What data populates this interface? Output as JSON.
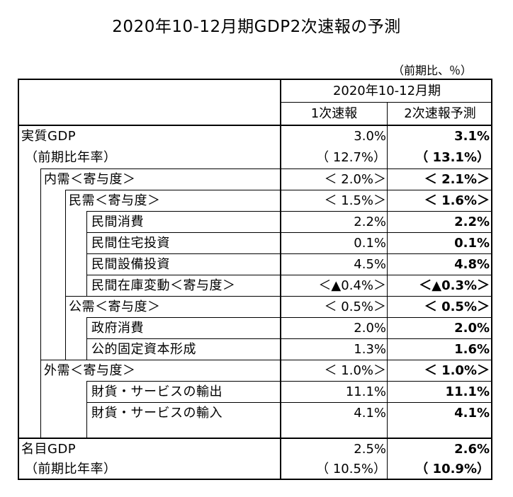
{
  "title": "2020年10-12月期GDP2次速報の予測",
  "unit": "（前期比、％）",
  "header": {
    "period": "2020年10-12月期",
    "col1": "1次速報",
    "col2": "2次速報予測"
  },
  "rows": [
    {
      "label": "実質GDP",
      "v1": "3.0%",
      "v2": "3.1%"
    },
    {
      "label": "（前期比年率）",
      "v1": "（ 12.7%）",
      "v2": "（ 13.1%）"
    },
    {
      "label": "内需＜寄与度＞",
      "v1": "＜ 2.0%＞",
      "v2": "＜ 2.1%＞"
    },
    {
      "label": "民需＜寄与度＞",
      "v1": "＜ 1.5%＞",
      "v2": "＜ 1.6%＞"
    },
    {
      "label": "民間消費",
      "v1": "2.2%",
      "v2": "2.2%"
    },
    {
      "label": "民間住宅投資",
      "v1": "0.1%",
      "v2": "0.1%"
    },
    {
      "label": "民間設備投資",
      "v1": "4.5%",
      "v2": "4.8%"
    },
    {
      "label": "民間在庫変動＜寄与度＞",
      "v1": "＜▲0.4%＞",
      "v2": "＜▲0.3%＞"
    },
    {
      "label": "公需＜寄与度＞",
      "v1": "＜ 0.5%＞",
      "v2": "＜ 0.5%＞"
    },
    {
      "label": "政府消費",
      "v1": "2.0%",
      "v2": "2.0%"
    },
    {
      "label": "公的固定資本形成",
      "v1": "1.3%",
      "v2": "1.6%"
    },
    {
      "label": "外需＜寄与度＞",
      "v1": "＜ 1.0%＞",
      "v2": "＜ 1.0%＞"
    },
    {
      "label": "財貨・サービスの輸出",
      "v1": "11.1%",
      "v2": "11.1%"
    },
    {
      "label": "財貨・サービスの輸入",
      "v1": "4.1%",
      "v2": "4.1%"
    },
    {
      "label": "名目GDP",
      "v1": "2.5%",
      "v2": "2.6%"
    },
    {
      "label": "（前期比年率）",
      "v1": "（ 10.5%）",
      "v2": "（ 10.9%）"
    }
  ]
}
